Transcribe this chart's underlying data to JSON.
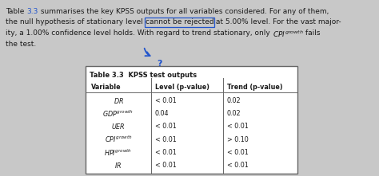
{
  "bg_color": "#c8c8c8",
  "text_color": "#1a1a1a",
  "table_title": "Table 3.3  KPSS test outputs",
  "col_headers": [
    "Variable",
    "Level (p-value)",
    "Trend (p-value)"
  ],
  "var_latex": [
    "$DR$",
    "$GDP^{growth}$",
    "$UER$",
    "$CPI^{growth}$",
    "$HPI^{growth}$",
    "$IR$"
  ],
  "level_vals": [
    "< 0.01",
    "0.04",
    "< 0.01",
    "< 0.01",
    "< 0.01",
    "< 0.01"
  ],
  "trend_vals": [
    "0.02",
    "0.02",
    "< 0.01",
    "> 0.10",
    "< 0.01",
    "< 0.01"
  ],
  "ref_color": "#2255cc",
  "table_edge": "#666666",
  "fs_body": 6.5,
  "fs_table": 5.8
}
